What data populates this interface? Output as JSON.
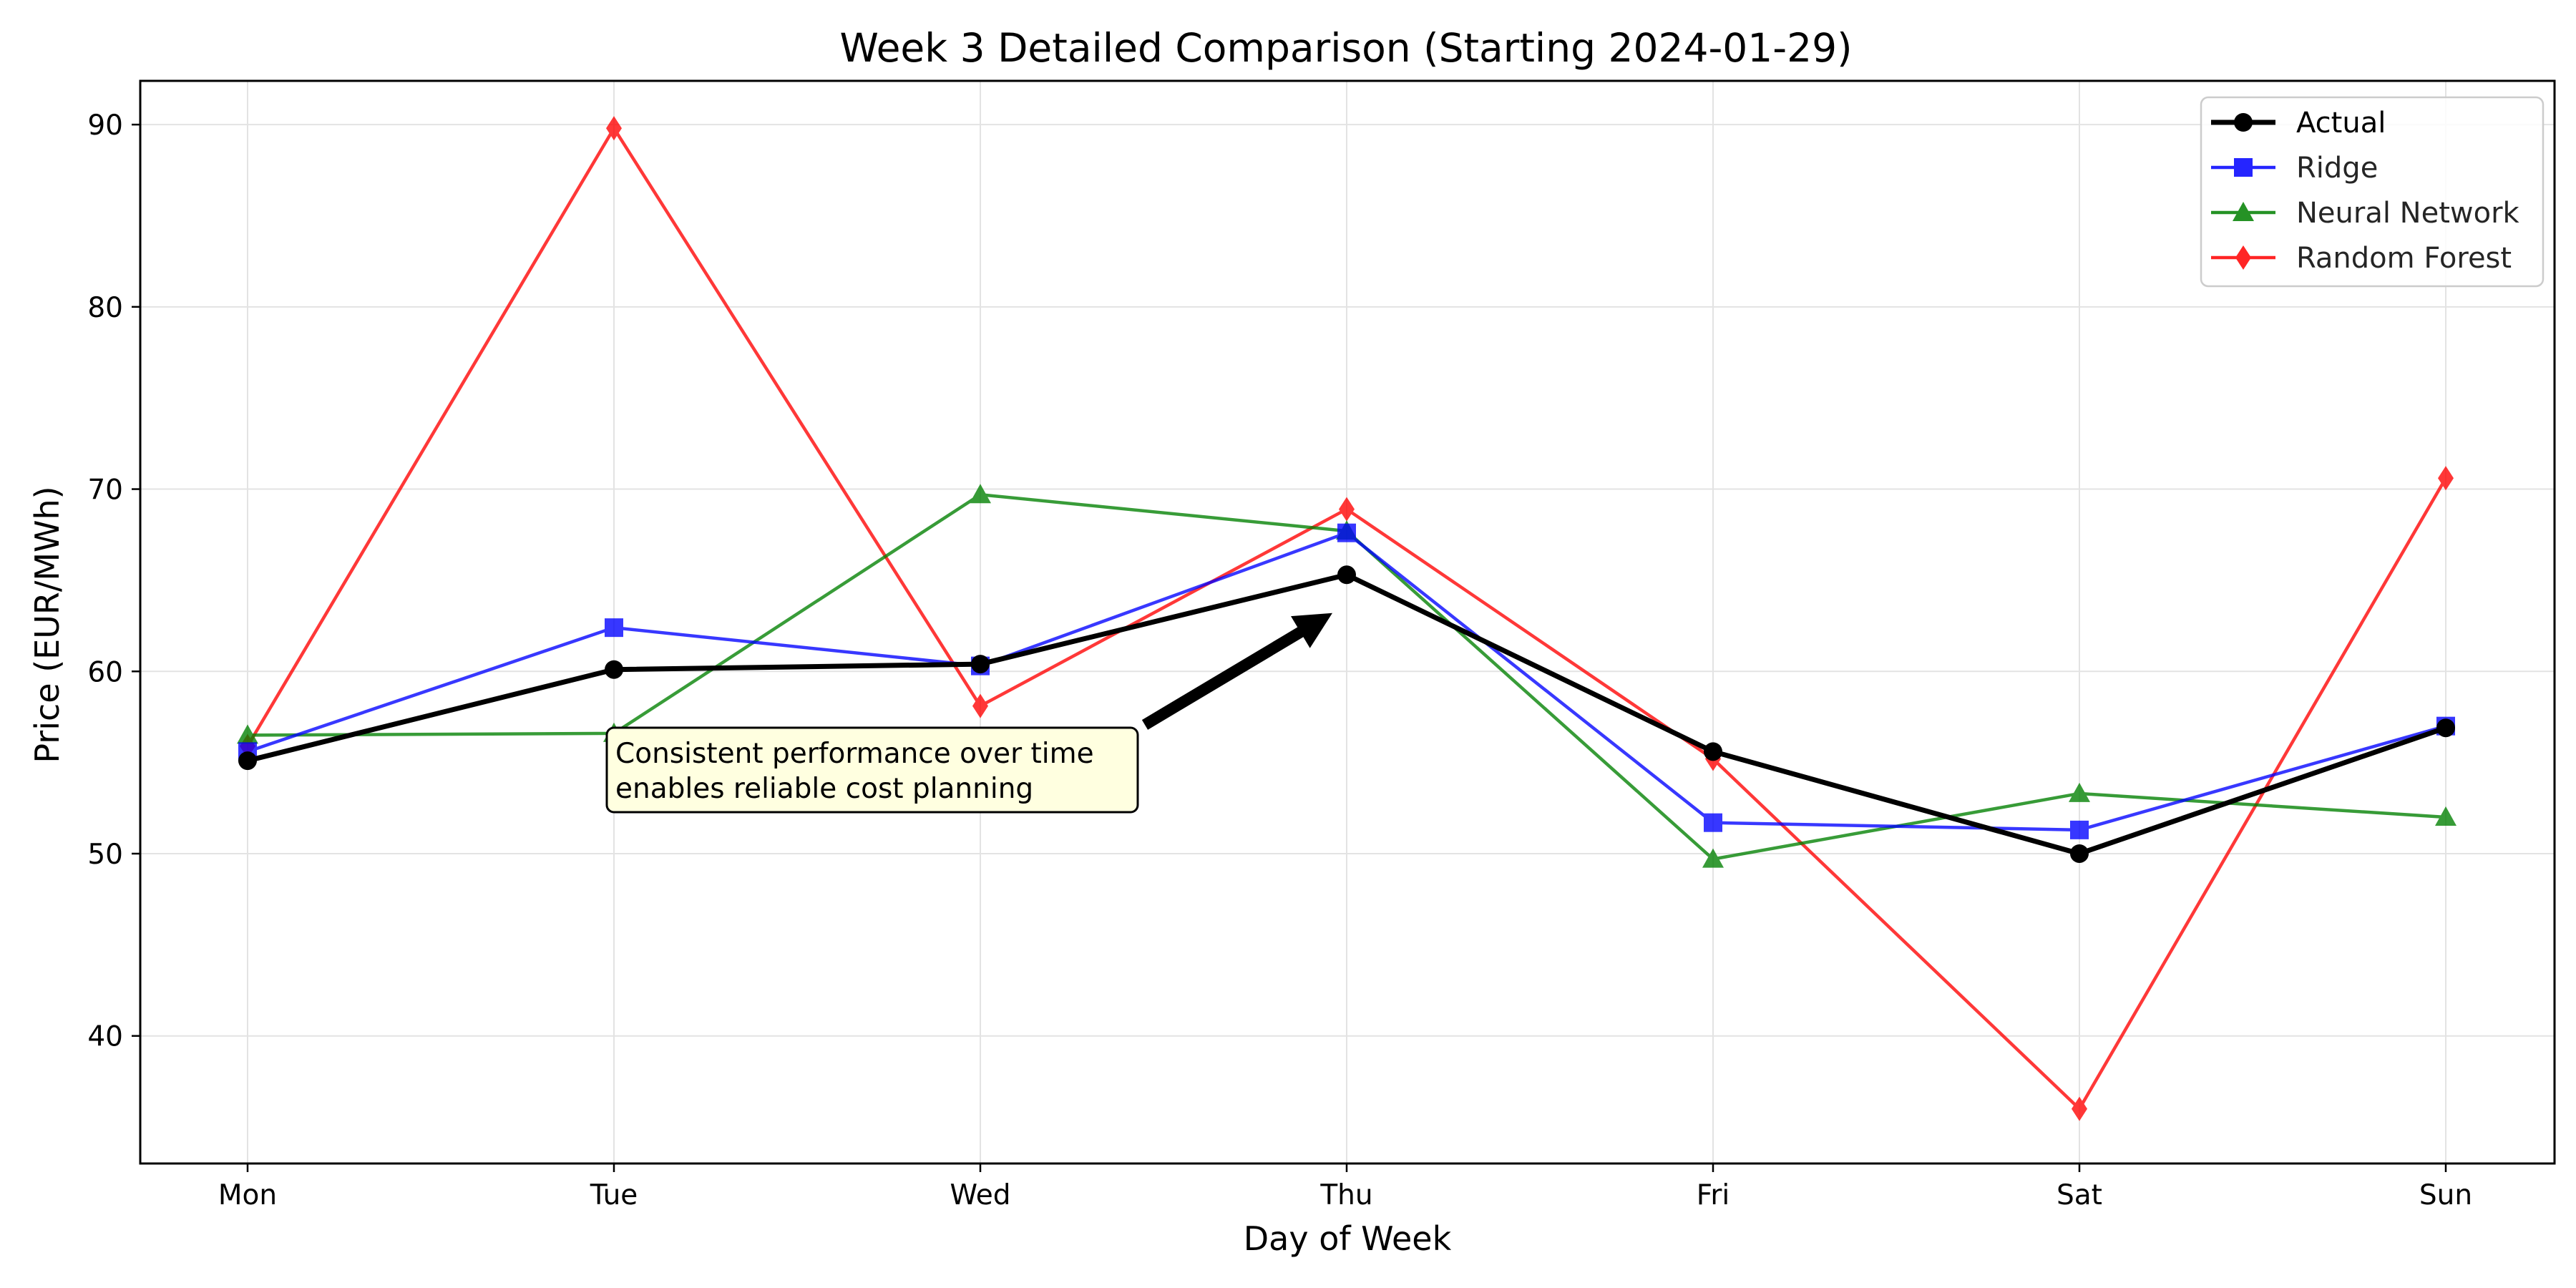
{
  "chart_data": {
    "type": "line",
    "title": "Week 3 Detailed Comparison (Starting 2024-01-29)",
    "xlabel": "Day of Week",
    "ylabel": "Price (EUR/MWh)",
    "categories": [
      "Mon",
      "Tue",
      "Wed",
      "Thu",
      "Fri",
      "Sat",
      "Sun"
    ],
    "ylim": [
      33.0,
      92.4
    ],
    "yticks": [
      40,
      50,
      60,
      70,
      80,
      90
    ],
    "grid": true,
    "legend_position": "top-right",
    "series": [
      {
        "name": "Actual",
        "color": "#000000",
        "marker": "circle",
        "bold": true,
        "values": [
          55.1,
          60.1,
          60.4,
          65.3,
          55.6,
          50.0,
          56.9
        ]
      },
      {
        "name": "Ridge",
        "color": "#0000ff",
        "marker": "square",
        "values": [
          55.6,
          62.4,
          60.3,
          67.6,
          51.7,
          51.3,
          57.0
        ]
      },
      {
        "name": "Neural Network",
        "color": "#008000",
        "marker": "triangle",
        "values": [
          56.5,
          56.6,
          69.7,
          67.7,
          49.7,
          53.3,
          52.0
        ]
      },
      {
        "name": "Random Forest",
        "color": "#ff0000",
        "marker": "diamond",
        "values": [
          55.9,
          89.8,
          58.1,
          68.9,
          55.2,
          36.0,
          70.6
        ]
      }
    ],
    "annotations": [
      {
        "text_lines": [
          "Consistent performance over time",
          "enables reliable cost planning"
        ],
        "target": {
          "x": "Thu",
          "y": 63.2
        }
      }
    ]
  }
}
